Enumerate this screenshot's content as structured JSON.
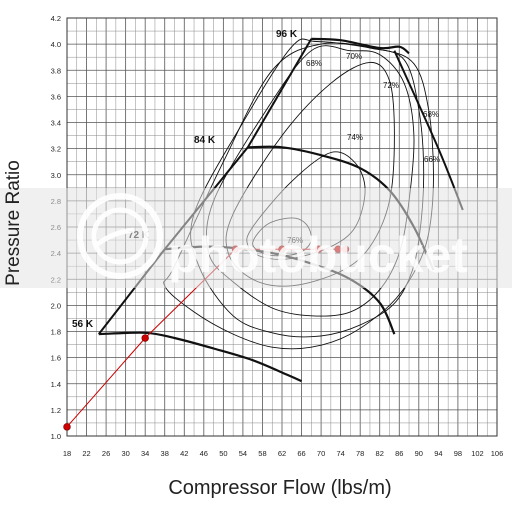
{
  "chart_data": {
    "type": "line",
    "xlabel": "Compressor Flow (lbs/m)",
    "ylabel": "Pressure Ratio",
    "x_ticks": [
      18,
      22,
      26,
      30,
      34,
      38,
      42,
      46,
      50,
      54,
      58,
      62,
      66,
      70,
      74,
      78,
      82,
      86,
      90,
      94,
      98,
      102,
      106
    ],
    "y_ticks": [
      1.0,
      1.2,
      1.4,
      1.6,
      1.8,
      2.0,
      2.2,
      2.4,
      2.6,
      2.8,
      3.0,
      3.2,
      3.4,
      3.6,
      3.8,
      4.0,
      4.2
    ],
    "x_tick_labels": [
      "18",
      "22",
      "26",
      "30",
      "34",
      "38",
      "42",
      "46",
      "50",
      "54",
      "58",
      "62",
      "66",
      "70",
      "74",
      "78",
      "82",
      "86",
      "90",
      "94",
      "98",
      "102",
      "106"
    ],
    "y_tick_labels": [
      "1.0",
      "1.2",
      "1.4",
      "1.6",
      "1.8",
      "2.0",
      "2.2",
      "2.4",
      "2.6",
      "2.8",
      "3.0",
      "3.2",
      "3.4",
      "3.6",
      "3.8",
      "4.0",
      "4.2"
    ],
    "xlim": [
      18,
      106
    ],
    "ylim": [
      1.0,
      4.2
    ],
    "grid": true,
    "surge_line": {
      "x": [
        24.5,
        38,
        55,
        68
      ],
      "y": [
        1.78,
        2.43,
        3.21,
        4.04
      ]
    },
    "choke_line": {
      "x": [
        85,
        94,
        99
      ],
      "y": [
        3.95,
        3.2,
        2.73
      ]
    },
    "speed_lines": [
      {
        "name": "56 K",
        "x": [
          24.5,
          34,
          40,
          48,
          56,
          63,
          66
        ],
        "y": [
          1.78,
          1.79,
          1.75,
          1.67,
          1.58,
          1.47,
          1.42
        ]
      },
      {
        "name": "72 K",
        "x": [
          38,
          46,
          52,
          60,
          68,
          76,
          82,
          85
        ],
        "y": [
          2.43,
          2.45,
          2.44,
          2.4,
          2.32,
          2.2,
          2.02,
          1.78
        ]
      },
      {
        "name": "84 K",
        "x": [
          55,
          62,
          70,
          78,
          84,
          89,
          93
        ],
        "y": [
          3.21,
          3.21,
          3.15,
          3.05,
          2.88,
          2.6,
          2.27
        ]
      },
      {
        "name": "96 K",
        "x": [
          68,
          74,
          82,
          86,
          88
        ],
        "y": [
          4.04,
          4.03,
          3.97,
          3.98,
          3.93
        ]
      }
    ],
    "efficiency_islands": [
      {
        "name": "76%",
        "x": [
          59,
          64,
          67,
          68,
          66,
          62,
          58,
          56
        ],
        "y": [
          2.62,
          2.67,
          2.62,
          2.5,
          2.41,
          2.38,
          2.4,
          2.48
        ]
      },
      {
        "name": "74%",
        "x": [
          56,
          64,
          72,
          77,
          79,
          77,
          72,
          64,
          58,
          55
        ],
        "y": [
          2.6,
          2.95,
          3.17,
          3.09,
          2.88,
          2.6,
          2.45,
          2.36,
          2.37,
          2.46
        ]
      },
      {
        "name": "72%",
        "x": [
          52,
          62,
          72,
          80,
          84,
          85,
          84,
          80,
          74,
          64,
          56,
          51
        ],
        "y": [
          2.7,
          3.3,
          3.7,
          3.86,
          3.72,
          3.3,
          2.8,
          2.45,
          2.26,
          2.15,
          2.2,
          2.4
        ]
      },
      {
        "name": "70%",
        "x": [
          48,
          58,
          68,
          76,
          82,
          87,
          89,
          88,
          86,
          82,
          76,
          68,
          60,
          52,
          47
        ],
        "y": [
          2.8,
          3.45,
          3.95,
          3.95,
          3.92,
          3.7,
          3.3,
          2.8,
          2.4,
          2.12,
          1.95,
          1.92,
          1.98,
          2.18,
          2.4
        ]
      },
      {
        "name": "68%",
        "x": [
          44,
          54,
          64,
          69,
          80,
          87,
          90,
          91,
          90,
          88,
          84,
          76,
          68,
          60,
          52,
          45
        ],
        "y": [
          2.7,
          3.4,
          3.98,
          4.02,
          3.97,
          3.88,
          3.5,
          3.0,
          2.5,
          2.2,
          1.98,
          1.82,
          1.76,
          1.79,
          1.92,
          2.3
        ]
      },
      {
        "name": "66%",
        "x": [
          40,
          50,
          60,
          70,
          82,
          89,
          92,
          93,
          92,
          89,
          84,
          76,
          68,
          60,
          52,
          44,
          38
        ],
        "y": [
          2.3,
          3.1,
          3.8,
          4.0,
          3.96,
          3.85,
          3.5,
          3.0,
          2.55,
          2.25,
          2.0,
          1.78,
          1.68,
          1.68,
          1.78,
          1.95,
          2.15
        ]
      }
    ],
    "operating_points": {
      "color": "#cc0000",
      "x": [
        18,
        34,
        52.5,
        62,
        69.5,
        73.5,
        75
      ],
      "y": [
        1.07,
        1.75,
        2.43,
        2.43,
        2.43,
        2.43,
        2.43
      ]
    },
    "labels": {
      "speeds": [
        "96 K",
        "84 K",
        "72 K",
        "56 K"
      ],
      "efficiencies": [
        "68%",
        "70%",
        "72%",
        "68%",
        "74%",
        "66%",
        "76%"
      ]
    },
    "watermark": "photobucket"
  }
}
